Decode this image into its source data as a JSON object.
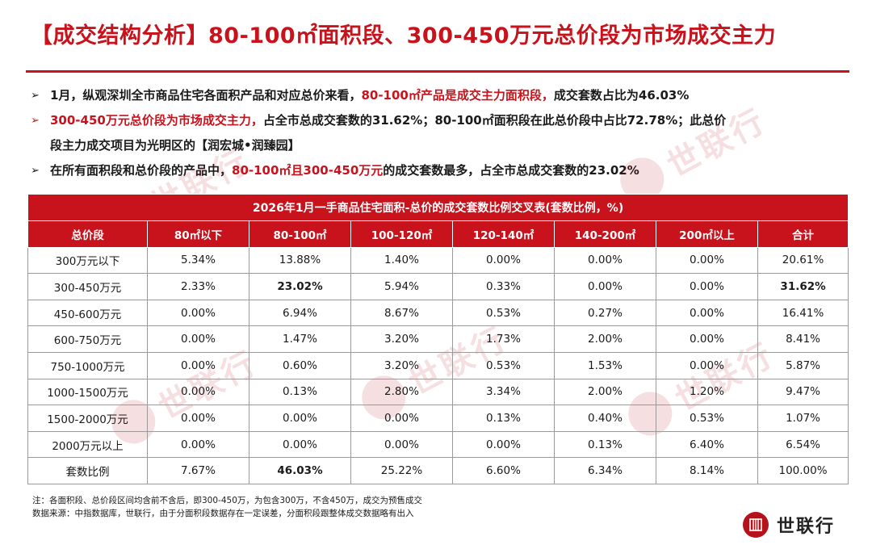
{
  "title": "【成交结构分析】80-100㎡面积段、300-450万元总价段为市场成交主力",
  "bullets": [
    {
      "arrow": "➢",
      "parts": [
        "1月，纵观深圳全市商品住宅各面积产品和对应总价来看，",
        "80-100㎡产品是成交主力面积段，",
        "成交套数占比为46.03%"
      ]
    },
    {
      "arrow": "➢",
      "parts": [
        "300-450万元总价段为市场成交主力，",
        "占全市总成交套数的31.62%；80-100㎡面积段在此总价段中占比72.78%；此总价",
        "段主力成交项目为光明区的【润宏城•润臻园】"
      ]
    },
    {
      "arrow": "➢",
      "parts": [
        "在所有面积段和总价段的产品中，",
        "80-100㎡且300-450万元",
        "的成交套数最多，占全市总成交套数的23.02%"
      ]
    }
  ],
  "table": {
    "caption": "2026年1月一手商品住宅面积-总价的成交套数比例交叉表(套数比例，%)",
    "headers": [
      "总价段",
      "80㎡以下",
      "80-100㎡",
      "100-120㎡",
      "120-140㎡",
      "140-200㎡",
      "200㎡以上",
      "合计"
    ],
    "rows": [
      [
        "300万元以下",
        "5.34%",
        "13.88%",
        "1.40%",
        "0.00%",
        "0.00%",
        "0.00%",
        "20.61%"
      ],
      [
        "300-450万元",
        "2.33%",
        "23.02%",
        "5.94%",
        "0.33%",
        "0.00%",
        "0.00%",
        "31.62%"
      ],
      [
        "450-600万元",
        "0.00%",
        "6.94%",
        "8.67%",
        "0.53%",
        "0.27%",
        "0.00%",
        "16.41%"
      ],
      [
        "600-750万元",
        "0.00%",
        "1.47%",
        "3.20%",
        "1.73%",
        "2.00%",
        "0.00%",
        "8.41%"
      ],
      [
        "750-1000万元",
        "0.00%",
        "0.60%",
        "3.20%",
        "0.53%",
        "1.53%",
        "0.00%",
        "5.87%"
      ],
      [
        "1000-1500万元",
        "0.00%",
        "0.13%",
        "2.80%",
        "3.34%",
        "2.00%",
        "1.20%",
        "9.47%"
      ],
      [
        "1500-2000万元",
        "0.00%",
        "0.00%",
        "0.00%",
        "0.13%",
        "0.40%",
        "0.53%",
        "1.07%"
      ],
      [
        "2000万元以上",
        "0.00%",
        "0.00%",
        "0.00%",
        "0.00%",
        "0.13%",
        "6.40%",
        "6.54%"
      ],
      [
        "套数比例",
        "7.67%",
        "46.03%",
        "25.22%",
        "6.60%",
        "6.34%",
        "8.14%",
        "100.00%"
      ]
    ],
    "bold_cells": [
      [
        1,
        2
      ],
      [
        1,
        7
      ],
      [
        8,
        2
      ]
    ]
  },
  "notes": [
    "注：各面积段、总价段区间均含前不含后，即300-450万，为包含300万，不含450万，成交为预售成交",
    "数据来源：中指数据库，世联行，由于分面积段数据存在一定误差，分面积段跟整体成交数据略有出入"
  ],
  "logo": {
    "text": "世联行",
    "color": "#b5121b"
  },
  "colors": {
    "accent": "#c8121c"
  }
}
